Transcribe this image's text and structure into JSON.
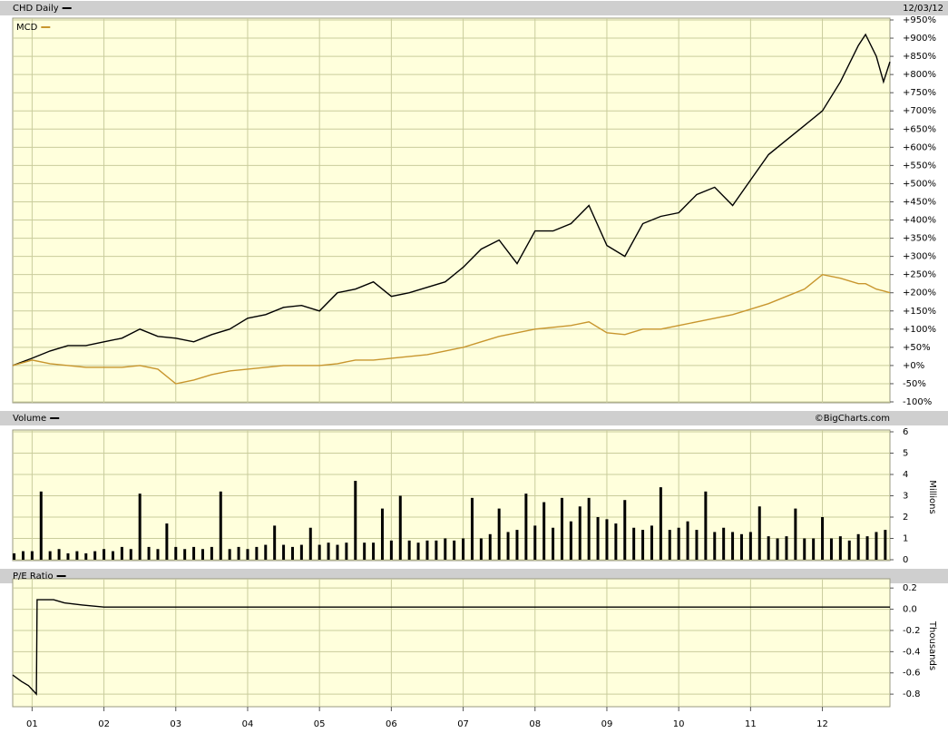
{
  "chart_data": [
    {
      "type": "line",
      "date": "12/03/12",
      "x": [
        2000.73,
        2001,
        2001.25,
        2001.5,
        2001.75,
        2002,
        2002.25,
        2002.5,
        2002.75,
        2003,
        2003.25,
        2003.5,
        2003.75,
        2004,
        2004.25,
        2004.5,
        2004.75,
        2005,
        2005.25,
        2005.5,
        2005.75,
        2006,
        2006.25,
        2006.5,
        2006.75,
        2007,
        2007.25,
        2007.5,
        2007.75,
        2008,
        2008.25,
        2008.5,
        2008.75,
        2009,
        2009.25,
        2009.5,
        2009.75,
        2010,
        2010.25,
        2010.5,
        2010.75,
        2011,
        2011.25,
        2011.5,
        2011.75,
        2012,
        2012.25,
        2012.5,
        2012.6,
        2012.75,
        2012.85,
        2012.94
      ],
      "series": [
        {
          "name": "CHD Daily",
          "color": "#000000",
          "values": [
            0,
            20,
            40,
            55,
            55,
            65,
            75,
            100,
            80,
            75,
            65,
            85,
            100,
            130,
            140,
            160,
            165,
            150,
            200,
            210,
            230,
            190,
            200,
            215,
            230,
            270,
            320,
            345,
            280,
            370,
            370,
            390,
            440,
            330,
            300,
            390,
            410,
            420,
            470,
            490,
            440,
            510,
            580,
            620,
            660,
            700,
            780,
            880,
            910,
            850,
            780,
            835
          ]
        },
        {
          "name": "MCD",
          "color": "#c8962e",
          "values": [
            0,
            15,
            5,
            0,
            -5,
            -5,
            -5,
            0,
            -10,
            -50,
            -40,
            -25,
            -15,
            -10,
            -5,
            0,
            0,
            0,
            5,
            15,
            15,
            20,
            25,
            30,
            40,
            50,
            65,
            80,
            90,
            100,
            105,
            110,
            120,
            90,
            85,
            100,
            100,
            110,
            120,
            130,
            140,
            155,
            170,
            190,
            210,
            250,
            240,
            225,
            225,
            210,
            205,
            200
          ]
        }
      ],
      "ylim": [
        -100,
        950
      ],
      "yticks": [
        {
          "value": -100,
          "label": "-100%"
        },
        {
          "value": -50,
          "label": "-50%"
        },
        {
          "value": 0,
          "label": "+0%"
        },
        {
          "value": 50,
          "label": "+50%"
        },
        {
          "value": 100,
          "label": "+100%"
        },
        {
          "value": 150,
          "label": "+150%"
        },
        {
          "value": 200,
          "label": "+200%"
        },
        {
          "value": 250,
          "label": "+250%"
        },
        {
          "value": 300,
          "label": "+300%"
        },
        {
          "value": 350,
          "label": "+350%"
        },
        {
          "value": 400,
          "label": "+400%"
        },
        {
          "value": 450,
          "label": "+450%"
        },
        {
          "value": 500,
          "label": "+500%"
        },
        {
          "value": 550,
          "label": "+550%"
        },
        {
          "value": 600,
          "label": "+600%"
        },
        {
          "value": 650,
          "label": "+650%"
        },
        {
          "value": 700,
          "label": "+700%"
        },
        {
          "value": 750,
          "label": "+750%"
        },
        {
          "value": 800,
          "label": "+800%"
        },
        {
          "value": 850,
          "label": "+850%"
        },
        {
          "value": 900,
          "label": "+900%"
        },
        {
          "value": 950,
          "label": "+950%"
        }
      ],
      "grid": true
    },
    {
      "type": "bar",
      "source": "©BigCharts.com",
      "y_label": "Millions",
      "x": [
        2000.75,
        2000.875,
        2001,
        2001.125,
        2001.25,
        2001.375,
        2001.5,
        2001.625,
        2001.75,
        2001.875,
        2002,
        2002.125,
        2002.25,
        2002.375,
        2002.5,
        2002.625,
        2002.75,
        2002.875,
        2003,
        2003.125,
        2003.25,
        2003.375,
        2003.5,
        2003.625,
        2003.75,
        2003.875,
        2004,
        2004.125,
        2004.25,
        2004.375,
        2004.5,
        2004.625,
        2004.75,
        2004.875,
        2005,
        2005.125,
        2005.25,
        2005.375,
        2005.5,
        2005.625,
        2005.75,
        2005.875,
        2006,
        2006.125,
        2006.25,
        2006.375,
        2006.5,
        2006.625,
        2006.75,
        2006.875,
        2007,
        2007.125,
        2007.25,
        2007.375,
        2007.5,
        2007.625,
        2007.75,
        2007.875,
        2008,
        2008.125,
        2008.25,
        2008.375,
        2008.5,
        2008.625,
        2008.75,
        2008.875,
        2009,
        2009.125,
        2009.25,
        2009.375,
        2009.5,
        2009.625,
        2009.75,
        2009.875,
        2010,
        2010.125,
        2010.25,
        2010.375,
        2010.5,
        2010.625,
        2010.75,
        2010.875,
        2011,
        2011.125,
        2011.25,
        2011.375,
        2011.5,
        2011.625,
        2011.75,
        2011.875,
        2012,
        2012.125,
        2012.25,
        2012.375,
        2012.5,
        2012.625,
        2012.75,
        2012.875
      ],
      "series": [
        {
          "name": "Volume",
          "color": "#000000",
          "values": [
            0.3,
            0.4,
            0.4,
            3.2,
            0.4,
            0.5,
            0.3,
            0.4,
            0.3,
            0.4,
            0.5,
            0.4,
            0.6,
            0.5,
            3.1,
            0.6,
            0.5,
            1.7,
            0.6,
            0.5,
            0.6,
            0.5,
            0.6,
            3.2,
            0.5,
            0.6,
            0.5,
            0.6,
            0.7,
            1.6,
            0.7,
            0.6,
            0.7,
            1.5,
            0.7,
            0.8,
            0.7,
            0.8,
            3.7,
            0.8,
            0.8,
            2.4,
            0.9,
            3.0,
            0.9,
            0.8,
            0.9,
            0.9,
            1.0,
            0.9,
            1.0,
            2.9,
            1.0,
            1.2,
            2.4,
            1.3,
            1.4,
            3.1,
            1.6,
            2.7,
            1.5,
            2.9,
            1.8,
            2.5,
            2.9,
            2.0,
            1.9,
            1.7,
            2.8,
            1.5,
            1.4,
            1.6,
            3.4,
            1.4,
            1.5,
            1.8,
            1.4,
            3.2,
            1.3,
            1.5,
            1.3,
            1.2,
            1.3,
            2.5,
            1.1,
            1.0,
            1.1,
            2.4,
            1.0,
            1.0,
            2.0,
            1.0,
            1.1,
            0.9,
            1.2,
            1.1,
            1.3,
            1.4
          ]
        }
      ],
      "ylim": [
        0,
        6
      ],
      "yticks": [
        0,
        1,
        2,
        3,
        4,
        5,
        6
      ],
      "grid": true
    },
    {
      "type": "line",
      "y_label": "Thousands",
      "x": [
        2000.73,
        2000.85,
        2000.95,
        2001.06,
        2001.07,
        2001.3,
        2001.45,
        2001.7,
        2002,
        2012.94
      ],
      "series": [
        {
          "name": "P/E Ratio",
          "color": "#000000",
          "values": [
            -0.62,
            -0.68,
            -0.72,
            -0.8,
            0.09,
            0.09,
            0.06,
            0.04,
            0.02,
            0.02
          ]
        }
      ],
      "ylim": [
        -0.91,
        0.27
      ],
      "yticks": [
        0.2,
        {
          "value": 0,
          "label": "0.0"
        },
        -0.2,
        -0.4,
        -0.6,
        -0.8
      ],
      "xlim": [
        2000.73,
        2012.94
      ],
      "xticks": [
        {
          "value": 2001,
          "label": "01"
        },
        {
          "value": 2002,
          "label": "02"
        },
        {
          "value": 2003,
          "label": "03"
        },
        {
          "value": 2004,
          "label": "04"
        },
        {
          "value": 2005,
          "label": "05"
        },
        {
          "value": 2006,
          "label": "06"
        },
        {
          "value": 2007,
          "label": "07"
        },
        {
          "value": 2008,
          "label": "08"
        },
        {
          "value": 2009,
          "label": "09"
        },
        {
          "value": 2010,
          "label": "10"
        },
        {
          "value": 2011,
          "label": "11"
        },
        {
          "value": 2012,
          "label": "12"
        }
      ],
      "grid": true
    }
  ]
}
